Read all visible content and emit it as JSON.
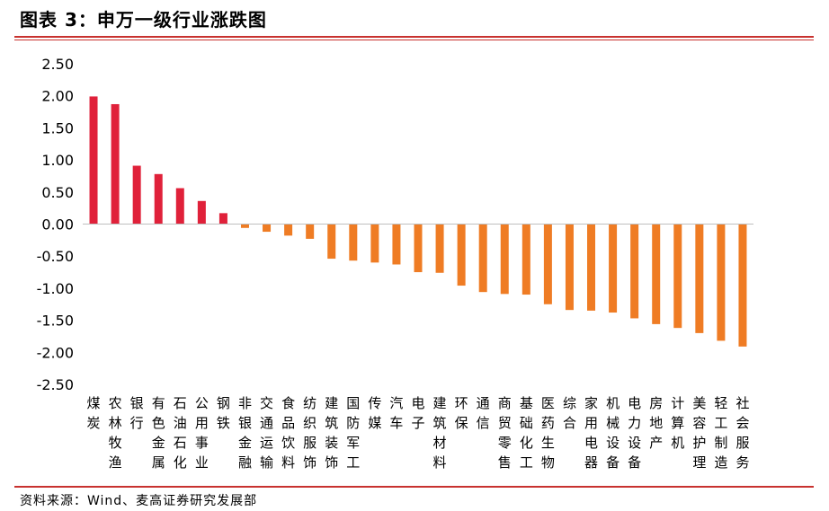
{
  "title": "图表 3：申万一级行业涨跌图",
  "source": "资料来源：Wind、麦高证券研究发展部",
  "colors": {
    "positive": "#e0213a",
    "negative": "#ef7c24",
    "rule": "#c8322f"
  },
  "chart_data": {
    "type": "bar",
    "title": "",
    "xlabel": "",
    "ylabel": "",
    "ylim": [
      -2.5,
      2.5
    ],
    "yticks": [
      "2.50",
      "2.00",
      "1.50",
      "1.00",
      "0.50",
      "0.00",
      "-0.50",
      "-1.00",
      "-1.50",
      "-2.00",
      "-2.50"
    ],
    "grid": false,
    "categories": [
      "煤炭",
      "农林牧渔",
      "银行",
      "有色金属",
      "石油石化",
      "公用事业",
      "钢铁",
      "非银金融",
      "交通运输",
      "食品饮料",
      "纺织服饰",
      "建筑装饰",
      "国防军工",
      "传媒",
      "汽车",
      "电子",
      "建筑材料",
      "环保",
      "通信",
      "商贸零售",
      "基础化工",
      "医药生物",
      "综合",
      "家用电器",
      "机械设备",
      "电力设备",
      "房地产",
      "计算机",
      "美容护理",
      "轻工制造",
      "社会服务"
    ],
    "values": [
      1.99,
      1.87,
      0.91,
      0.78,
      0.56,
      0.36,
      0.17,
      -0.06,
      -0.12,
      -0.18,
      -0.23,
      -0.54,
      -0.57,
      -0.6,
      -0.63,
      -0.75,
      -0.76,
      -0.96,
      -1.06,
      -1.09,
      -1.1,
      -1.25,
      -1.34,
      -1.35,
      -1.38,
      -1.47,
      -1.56,
      -1.62,
      -1.7,
      -1.82,
      -1.91
    ]
  }
}
